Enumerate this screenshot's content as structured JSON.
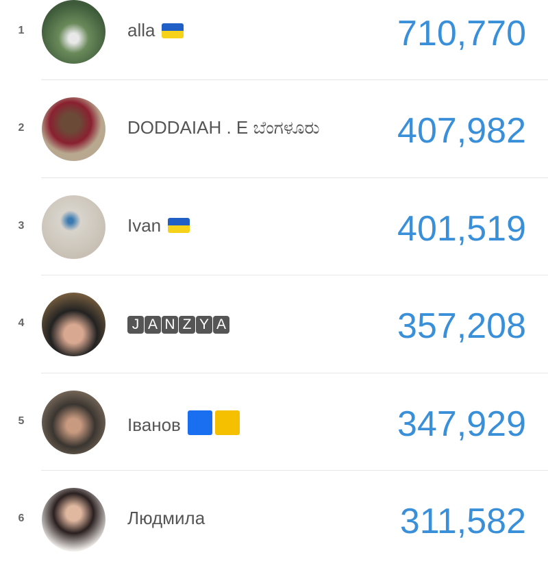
{
  "leaderboard": [
    {
      "rank": "1",
      "name": "alla",
      "badge": "flag-ukraine",
      "score": "710,770"
    },
    {
      "rank": "2",
      "name": "DODDAIAH . E ಬೆಂಗಳೂರು",
      "badge": "",
      "score": "407,982"
    },
    {
      "rank": "3",
      "name": "Ivan",
      "badge": "flag-ukraine",
      "score": "401,519"
    },
    {
      "rank": "4",
      "name": "JANZYA",
      "badge": "letter-tiles",
      "score": "357,208"
    },
    {
      "rank": "5",
      "name": "Іванов",
      "badge": "blue-yellow-squares",
      "score": "347,929"
    },
    {
      "rank": "6",
      "name": "Людмила",
      "badge": "",
      "score": "311,582"
    }
  ],
  "colors": {
    "score": "#3a8fd9",
    "flag_blue": "#1f5fc6",
    "flag_yellow": "#f7d21a",
    "square_blue": "#1a6ff0",
    "square_yellow": "#f5c000"
  }
}
